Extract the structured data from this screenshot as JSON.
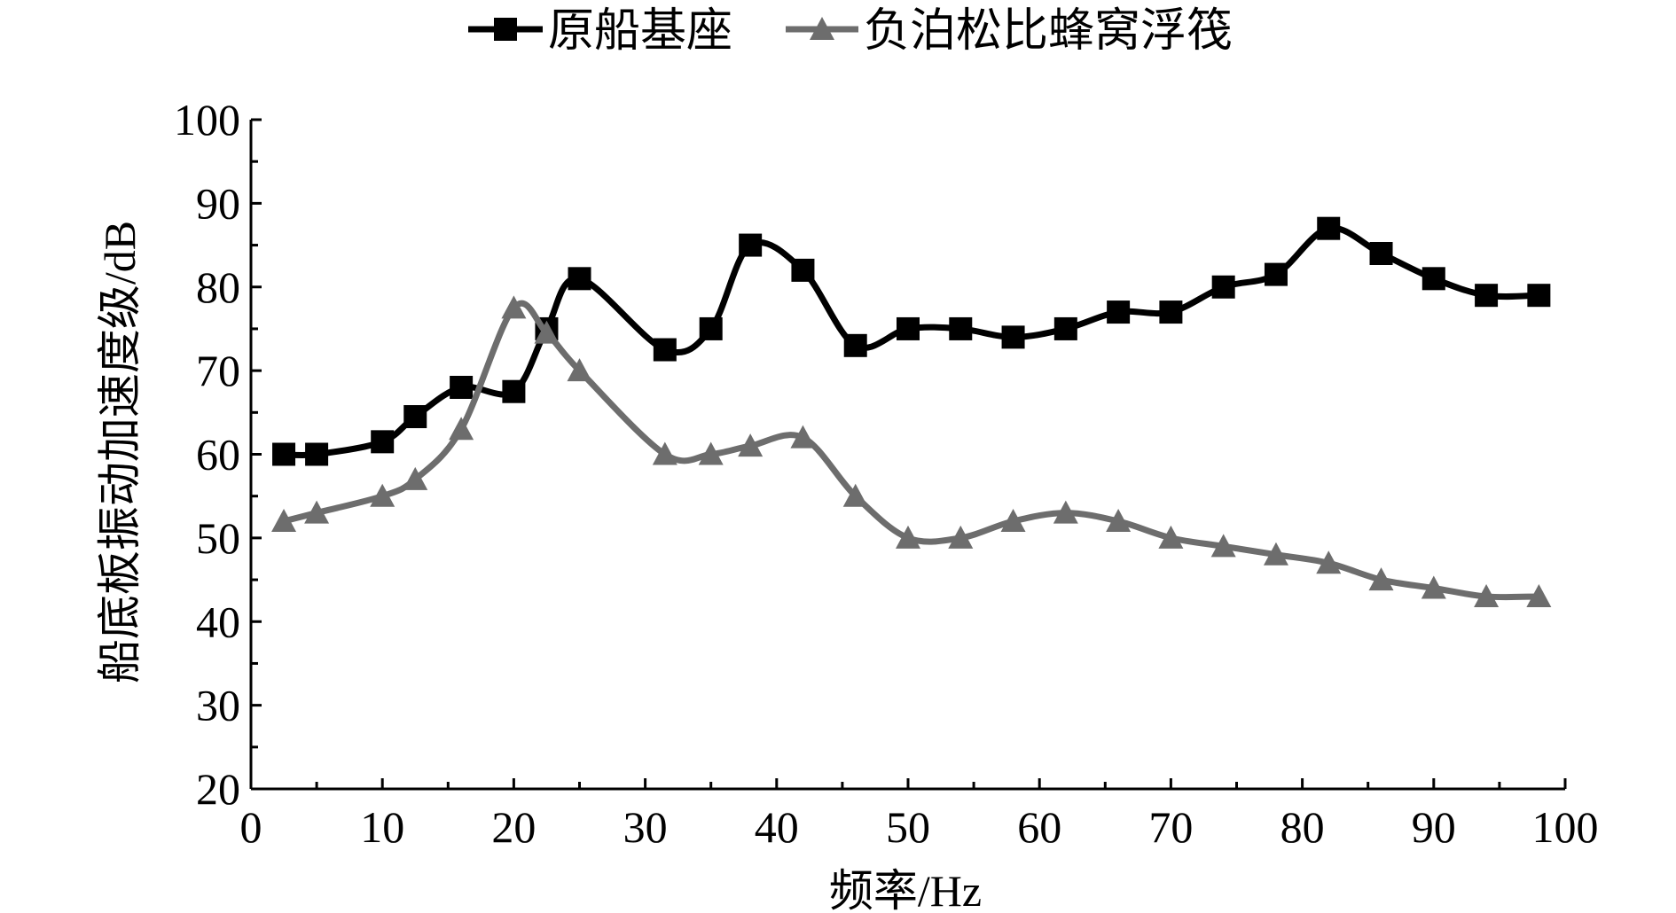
{
  "chart_data": {
    "type": "line",
    "xlabel": "频率/Hz",
    "ylabel": "船底板振动加速度级/dB",
    "xlim": [
      0,
      100
    ],
    "ylim": [
      20,
      100
    ],
    "x_ticks": [
      0,
      10,
      20,
      30,
      40,
      50,
      60,
      70,
      80,
      90,
      100
    ],
    "y_ticks": [
      20,
      30,
      40,
      50,
      60,
      70,
      80,
      90,
      100
    ],
    "grid": false,
    "legend_position": "top-center",
    "series": [
      {
        "name": "原船基座",
        "marker": "square",
        "color": "#000000",
        "x": [
          2.5,
          5,
          10,
          12.5,
          16,
          20,
          22.5,
          25,
          31.5,
          35,
          38,
          42,
          46,
          50,
          54,
          58,
          62,
          66,
          70,
          74,
          78,
          82,
          86,
          90,
          94,
          98
        ],
        "y": [
          60,
          60,
          61.5,
          64.5,
          68,
          67.5,
          75,
          81,
          72.5,
          75,
          85,
          82,
          73,
          75,
          75,
          74,
          75,
          77,
          77,
          80,
          81.5,
          87,
          84,
          81,
          79,
          79
        ]
      },
      {
        "name": "负泊松比蜂窝浮筏",
        "marker": "triangle",
        "color": "#6d6d6d",
        "x": [
          2.5,
          5,
          10,
          12.5,
          16,
          20,
          22.5,
          25,
          31.5,
          35,
          38,
          42,
          46,
          50,
          54,
          58,
          62,
          66,
          70,
          74,
          78,
          82,
          86,
          90,
          94,
          98
        ],
        "y": [
          52,
          53,
          55,
          57,
          63,
          77.5,
          74.5,
          70,
          60,
          60,
          61,
          62,
          55,
          50,
          50,
          52,
          53,
          52,
          50,
          49,
          48,
          47,
          45,
          44,
          43,
          43
        ]
      }
    ]
  }
}
